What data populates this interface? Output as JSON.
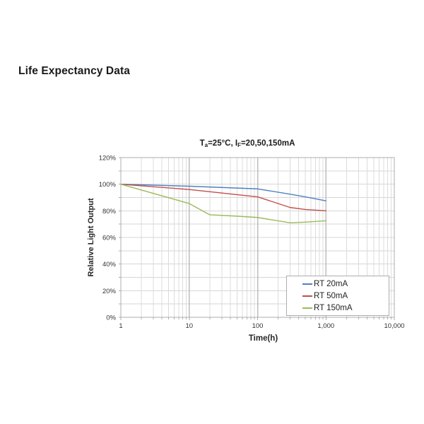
{
  "page": {
    "heading": "Life Expectancy Data"
  },
  "chart_data": {
    "type": "line",
    "title_plain": "Ta=25°C, IF=20,50,150mA",
    "title_parts": [
      {
        "t": "T",
        "sub": false
      },
      {
        "t": "a",
        "sub": true
      },
      {
        "t": "=25°C, I",
        "sub": false
      },
      {
        "t": "F",
        "sub": true
      },
      {
        "t": "=20,50,150mA",
        "sub": false
      }
    ],
    "xlabel": "Time(h)",
    "ylabel": "Relative Light Output",
    "x_scale": "log",
    "xlim": [
      1,
      10000
    ],
    "ylim_percent": [
      0,
      120
    ],
    "x_tick_labels": [
      "1",
      "10",
      "100",
      "1,000",
      "10,000"
    ],
    "y_tick_labels": [
      "0%",
      "20%",
      "40%",
      "60%",
      "80%",
      "100%",
      "120%"
    ],
    "y_major_step_percent": 20,
    "y_minor_step_percent": 10,
    "grid": true,
    "legend": {
      "position": "inside-bottom-right"
    },
    "series": [
      {
        "name": "RT 20mA",
        "color": "#4F81BD",
        "points": [
          [
            1,
            100
          ],
          [
            10,
            98.5
          ],
          [
            100,
            96.5
          ],
          [
            300,
            92.5
          ],
          [
            500,
            90.5
          ],
          [
            1000,
            87.5
          ]
        ]
      },
      {
        "name": "RT 50mA",
        "color": "#C0504D",
        "points": [
          [
            1,
            100
          ],
          [
            10,
            96
          ],
          [
            100,
            90.5
          ],
          [
            300,
            82.5
          ],
          [
            500,
            81
          ],
          [
            1000,
            80
          ]
        ]
      },
      {
        "name": "RT 150mA",
        "color": "#9BBB59",
        "points": [
          [
            1,
            100
          ],
          [
            10,
            85.5
          ],
          [
            20,
            77
          ],
          [
            50,
            76
          ],
          [
            100,
            75
          ],
          [
            300,
            71
          ],
          [
            500,
            71.5
          ],
          [
            1000,
            72.5
          ]
        ]
      }
    ],
    "colors": {
      "grid_minor": "#dcdcdc",
      "grid_horizontal": "#d6d6d6",
      "grid_major_vertical": "#bdbdbd",
      "plot_border": "#adadad",
      "tick_text": "#333333",
      "axis_title_text": "#262626"
    }
  }
}
